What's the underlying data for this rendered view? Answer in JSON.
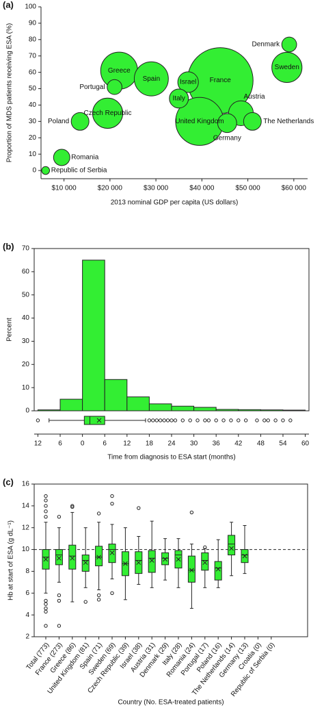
{
  "chart_data": [
    {
      "type": "scatter",
      "label": "(a)",
      "xlabel": "2013 nominal GDP per capita (US dollars)",
      "ylabel": "Proportion of MDS patients receiving ESA (%)",
      "color": "#33ee33",
      "labels": [
        "Denmark",
        "Sweden",
        "France",
        "Greece",
        "Spain",
        "Portugal",
        "Israel",
        "Italy",
        "Czech Republic",
        "United Kingdom",
        "Austria",
        "The Netherlands",
        "Germany",
        "Poland",
        "Romania",
        "Republic of Serbia"
      ],
      "x": [
        59000,
        58500,
        44000,
        22000,
        29000,
        21000,
        37000,
        35000,
        19500,
        39500,
        48500,
        51000,
        45500,
        13500,
        9500,
        6000
      ],
      "values": [
        77,
        63,
        55,
        61,
        56,
        51,
        54,
        44,
        35,
        30,
        35,
        30,
        29,
        30,
        8,
        0
      ],
      "sizes": [
        14,
        58,
        274,
        87,
        74,
        14,
        27,
        23,
        58,
        146,
        39,
        20,
        23,
        20,
        17,
        4
      ],
      "xlim": [
        5000,
        63000
      ],
      "xticks": [
        {
          "value": 10000,
          "label": "$10 000"
        },
        {
          "value": 20000,
          "label": "$20 000"
        },
        {
          "value": 30000,
          "label": "$30 000"
        },
        {
          "value": 40000,
          "label": "$40 000"
        },
        {
          "value": 50000,
          "label": "$50 000"
        },
        {
          "value": 60000,
          "label": "$60 000"
        }
      ],
      "ylim": [
        -5,
        100
      ],
      "yticks": [
        0,
        10,
        20,
        30,
        40,
        50,
        60,
        70,
        80,
        90,
        100
      ]
    },
    {
      "type": "histogram",
      "label": "(b)",
      "xlabel": "Time from diagnosis to ESA start (months)",
      "ylabel": "Percent",
      "color": "#33ee33",
      "bins": [
        -12,
        -6,
        0,
        6,
        12,
        18,
        24,
        30,
        36,
        42,
        48,
        54,
        60
      ],
      "counts": [
        0.4,
        5,
        65,
        13.5,
        6,
        3,
        2,
        1.5,
        0.6,
        0.5,
        0.4,
        0.3
      ],
      "box": {
        "low": -9,
        "q1": 0.5,
        "median": 2,
        "q3": 6,
        "high": 17,
        "mean": 4.5,
        "outliers": [
          -12,
          18,
          19,
          20,
          21,
          22,
          23,
          24,
          25,
          27,
          29,
          31,
          33,
          34,
          36,
          38,
          40,
          42,
          44,
          47,
          49,
          50,
          52,
          54,
          56
        ]
      },
      "xlim": [
        -13,
        61
      ],
      "xticks": [
        {
          "value": -12,
          "label": "12"
        },
        {
          "value": -6,
          "label": "6"
        },
        0,
        6,
        12,
        18,
        24,
        30,
        36,
        42,
        48,
        54,
        60
      ],
      "ylim": [
        0,
        70
      ],
      "yticks": [
        0,
        10,
        20,
        30,
        40,
        50,
        60,
        70
      ]
    },
    {
      "type": "boxplot",
      "label": "(c)",
      "xlabel": "Country (No. ESA-treated patients)",
      "ylabel": "Hb at start of ESA (g dL⁻¹)",
      "color": "#33ee33",
      "hline": 10,
      "categories": [
        "Total (773)",
        "France (273)",
        "Greece (86)",
        "United Kingdom (81)",
        "Spain (71)",
        "Sweden (69)",
        "Czech Republic (39)",
        "Israel (38)",
        "Austria (31)",
        "Denmark (29)",
        "Italy (28)",
        "Romania (24)",
        "Portugal (17)",
        "Poland (16)",
        "The Netherlands (14)",
        "Germany (13)",
        "Croatia (0)",
        "Republic of Serbia (0)"
      ],
      "boxes": [
        {
          "low": 6,
          "q1": 8.2,
          "median": 9.3,
          "q3": 10,
          "high": 12.5,
          "mean": 9.1,
          "outliers": [
            3,
            4.3,
            4.6,
            5,
            5.3,
            13,
            13.5,
            14,
            14.5,
            14.9
          ]
        },
        {
          "low": 7,
          "q1": 8.6,
          "median": 9.5,
          "q3": 10,
          "high": 12,
          "mean": 9.2,
          "outliers": [
            3,
            5.3,
            5.8,
            13
          ]
        },
        {
          "low": 5.2,
          "q1": 8.2,
          "median": 9.4,
          "q3": 10.4,
          "high": 13.4,
          "mean": 9.2,
          "outliers": [
            13.9,
            14
          ]
        },
        {
          "low": 6.5,
          "q1": 8,
          "median": 9,
          "q3": 9.5,
          "high": 12,
          "mean": 8.8,
          "outliers": [
            5.2
          ]
        },
        {
          "low": 6.3,
          "q1": 8.5,
          "median": 9.3,
          "q3": 10.3,
          "high": 12.5,
          "mean": 9.3,
          "outliers": [
            5.4,
            5.8,
            13.3
          ]
        },
        {
          "low": 7.3,
          "q1": 8.8,
          "median": 10,
          "q3": 10.5,
          "high": 12.3,
          "mean": 9.7,
          "outliers": [
            6,
            14.2,
            14.9
          ]
        },
        {
          "low": 5.4,
          "q1": 7.6,
          "median": 8.7,
          "q3": 9.8,
          "high": 12,
          "mean": 8.7,
          "outliers": []
        },
        {
          "low": 6.8,
          "q1": 7.8,
          "median": 9,
          "q3": 9.8,
          "high": 11.2,
          "mean": 8.8,
          "outliers": [
            13.8
          ]
        },
        {
          "low": 6.5,
          "q1": 7.9,
          "median": 9.2,
          "q3": 9.9,
          "high": 12.6,
          "mean": 9,
          "outliers": []
        },
        {
          "low": 7.2,
          "q1": 8.6,
          "median": 9.2,
          "q3": 9.7,
          "high": 11,
          "mean": 9.1,
          "outliers": []
        },
        {
          "low": 6.5,
          "q1": 8.3,
          "median": 9.5,
          "q3": 9.9,
          "high": 11,
          "mean": 9.1,
          "outliers": []
        },
        {
          "low": 4.6,
          "q1": 7,
          "median": 8.1,
          "q3": 9.4,
          "high": 10.5,
          "mean": 8.1,
          "outliers": [
            13.4
          ]
        },
        {
          "low": 6.5,
          "q1": 8.1,
          "median": 9,
          "q3": 9.7,
          "high": 10.1,
          "mean": 8.8,
          "outliers": [
            10.2
          ]
        },
        {
          "low": 6.5,
          "q1": 7.2,
          "median": 8.3,
          "q3": 8.9,
          "high": 10.9,
          "mean": 8.2,
          "outliers": []
        },
        {
          "low": 7.6,
          "q1": 9.5,
          "median": 10.5,
          "q3": 11.3,
          "high": 12.5,
          "mean": 10.1,
          "outliers": []
        },
        {
          "low": 7.8,
          "q1": 8.8,
          "median": 9.5,
          "q3": 10,
          "high": 12.2,
          "mean": 9.4,
          "outliers": []
        },
        null,
        null
      ],
      "ylim": [
        2,
        16
      ],
      "yticks": [
        2,
        4,
        6,
        8,
        10,
        12,
        14,
        16
      ]
    }
  ]
}
